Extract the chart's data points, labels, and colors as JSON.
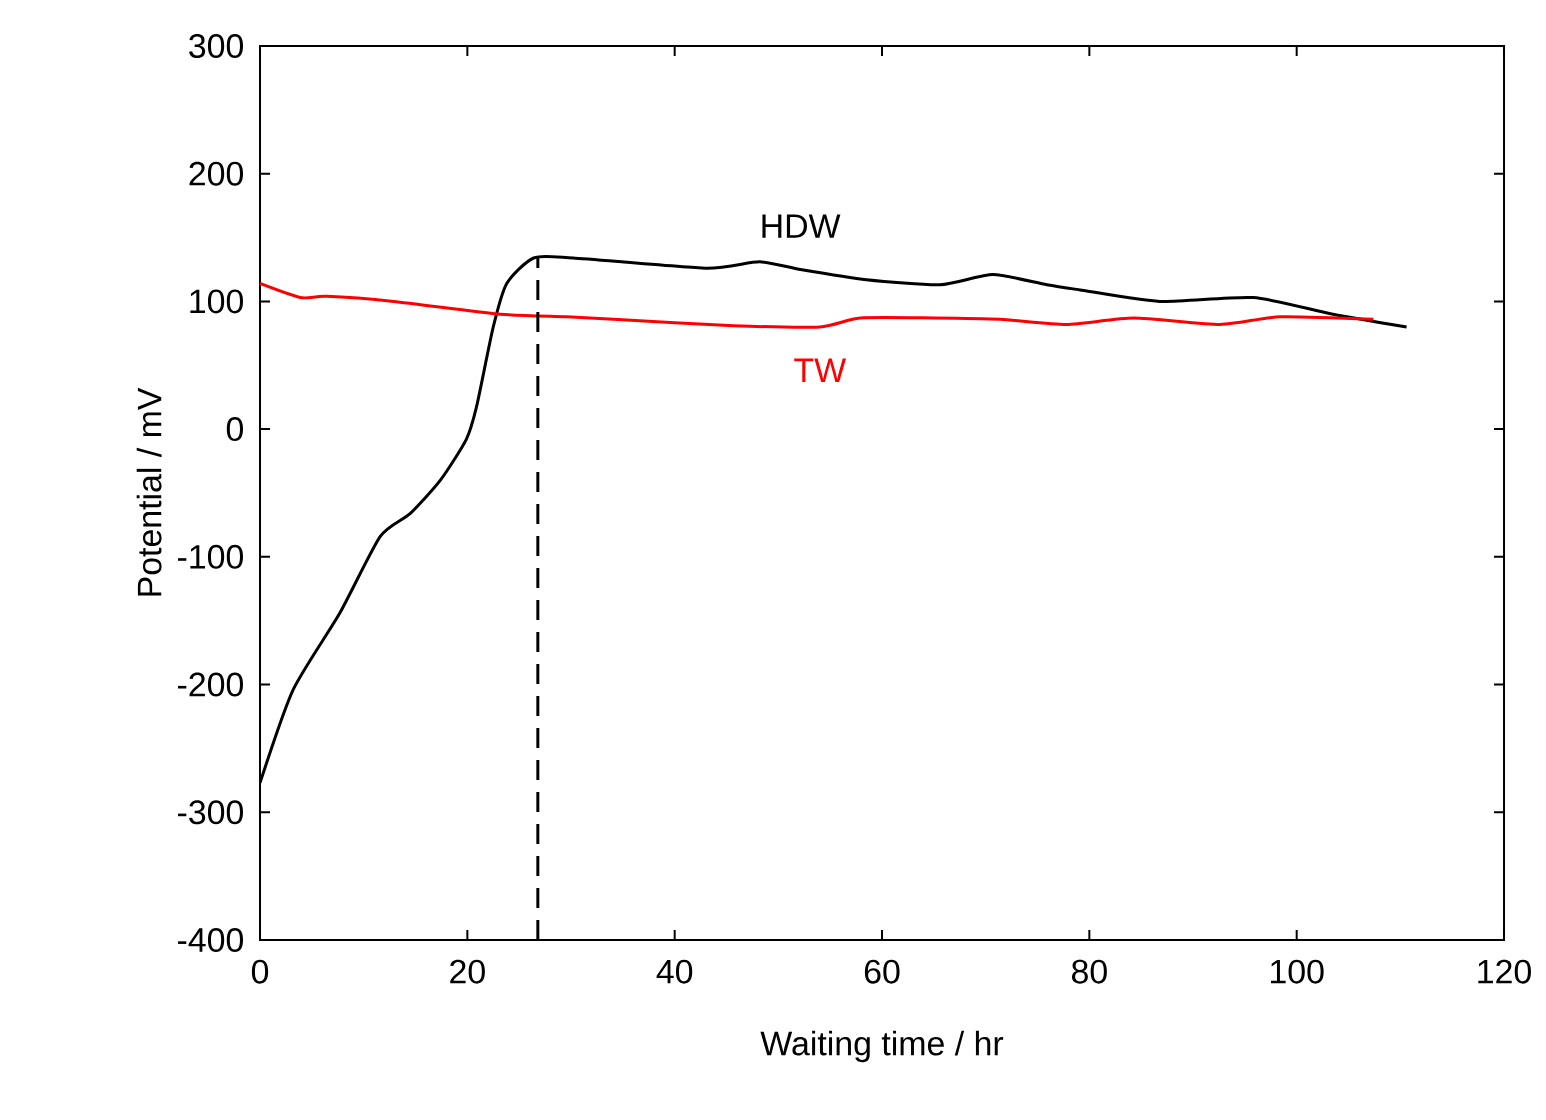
{
  "chart_data": {
    "type": "line",
    "xlabel": "Waiting time / hr",
    "ylabel": "Potential / mV",
    "xlim": [
      0,
      120
    ],
    "xticks": [
      0,
      20,
      40,
      60,
      80,
      100,
      120
    ],
    "ylim": [
      -400,
      300
    ],
    "yticks": [
      -400,
      -300,
      -200,
      -100,
      0,
      100,
      200,
      300
    ],
    "grid": false,
    "legend": false,
    "marker": "none",
    "series": [
      {
        "name": "HDW",
        "color": "#000000",
        "x": [
          0,
          3.2,
          7.7,
          11.6,
          14.5,
          17.4,
          19.9,
          20.9,
          22.5,
          23.8,
          26.4,
          30.2,
          43,
          48.2,
          52.1,
          58.5,
          65.6,
          70.7,
          75.9,
          79.1,
          86.8,
          95.8,
          103.5,
          110.6
        ],
        "values": [
          -277,
          -204,
          -144,
          -84,
          -66,
          -40,
          -8,
          18,
          80,
          114,
          134,
          134,
          126,
          131,
          125,
          117,
          113,
          121,
          113,
          109,
          100,
          103,
          90,
          80
        ]
      },
      {
        "name": "TW",
        "color": "#ff0000",
        "x": [
          0,
          3.9,
          6.4,
          12.9,
          23.2,
          29.6,
          34.1,
          45.7,
          54,
          57.9,
          65,
          71.4,
          77.8,
          84.3,
          92.6,
          98.4,
          107.4
        ],
        "values": [
          114,
          103,
          104,
          100,
          90,
          88,
          86,
          81,
          80,
          87,
          87,
          86,
          82,
          87,
          82,
          88,
          86
        ]
      }
    ],
    "ref_lines": [
      {
        "axis": "x",
        "value": 26.8,
        "color": "#000000",
        "line_style": "dashed"
      }
    ]
  }
}
